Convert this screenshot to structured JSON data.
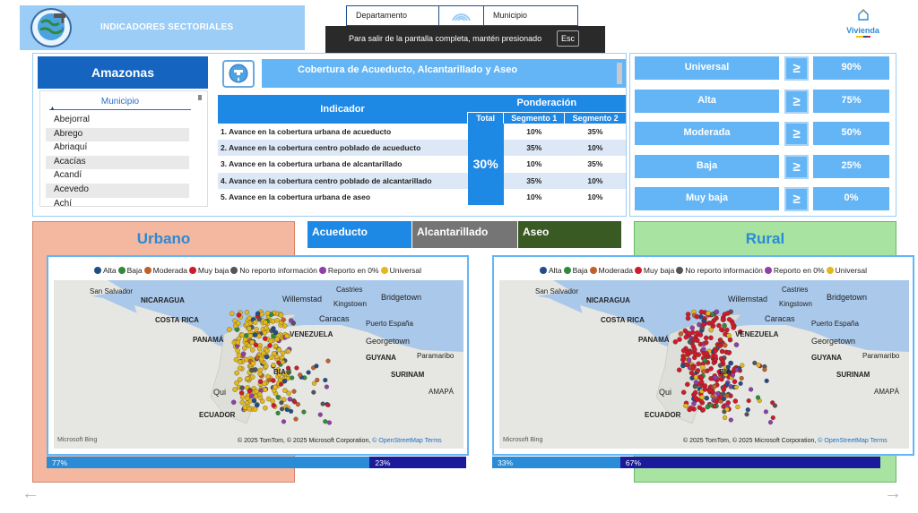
{
  "header": {
    "title": "INDICADORES SECTORIALES",
    "logo_icon": "water-globe-icon"
  },
  "filters": {
    "departamento_label": "Departamento",
    "municipio_label": "Municipio",
    "wifi_icon": "broadcast-icon"
  },
  "toast": {
    "message": "Para salir de la pantalla completa, mantén presionado",
    "key": "Esc"
  },
  "brand": {
    "name": "Vivienda",
    "flag_colors": [
      "#f5c400",
      "#1f4e9a",
      "#d8232a"
    ]
  },
  "department": {
    "name": "Amazonas"
  },
  "municipality_list": {
    "header": "Municipio",
    "items": [
      "Abejorral",
      "Abrego",
      "Abriaquí",
      "Acacías",
      "Acandí",
      "Acevedo",
      "Achí"
    ]
  },
  "coverage": {
    "title": "Cobertura de Acueducto, Alcantarillado y Aseo",
    "icon": "faucet-icon"
  },
  "indicator_table": {
    "header_indicator": "Indicador",
    "header_weighting": "Ponderación",
    "header_total": "Total",
    "header_seg1": "Segmento 1",
    "header_seg2": "Segmento 2",
    "total_value": "30%",
    "rows": [
      {
        "label": "1. Avance en la cobertura urbana de acueducto",
        "seg1": "10%",
        "seg2": "35%"
      },
      {
        "label": "2. Avance en la cobertura centro poblado de acueducto",
        "seg1": "35%",
        "seg2": "10%"
      },
      {
        "label": "3. Avance en la cobertura urbana de alcantarillado",
        "seg1": "10%",
        "seg2": "35%"
      },
      {
        "label": "4. Avance en la cobertura centro poblado de alcantarillado",
        "seg1": "35%",
        "seg2": "10%"
      },
      {
        "label": "5. Avance en la cobertura urbana de aseo",
        "seg1": "10%",
        "seg2": "10%"
      }
    ]
  },
  "levels": [
    {
      "label": "Universal",
      "symbol": "≥",
      "pct": "90%"
    },
    {
      "label": "Alta",
      "symbol": "≥",
      "pct": "75%"
    },
    {
      "label": "Moderada",
      "symbol": "≥",
      "pct": "50%"
    },
    {
      "label": "Baja",
      "symbol": "≥",
      "pct": "25%"
    },
    {
      "label": "Muy baja",
      "symbol": "≥",
      "pct": "0%"
    }
  ],
  "services": {
    "acueducto": "Acueducto",
    "alcantarillado": "Alcantarillado",
    "aseo": "Aseo"
  },
  "legend": [
    {
      "label": "Alta",
      "color": "#1f4e89"
    },
    {
      "label": "Baja",
      "color": "#2e8b3a"
    },
    {
      "label": "Moderada",
      "color": "#c0602a"
    },
    {
      "label": "Muy baja",
      "color": "#d01a2a"
    },
    {
      "label": "No reporto información",
      "color": "#555555"
    },
    {
      "label": "Reporto en 0%",
      "color": "#8e3fa8"
    },
    {
      "label": "Universal",
      "color": "#e3b81c"
    }
  ],
  "map": {
    "places": {
      "san_salvador": "San Salvador",
      "nicaragua": "NICARAGUA",
      "costa_rica": "COSTA RICA",
      "panama": "PANAMÁ",
      "willemstad": "Willemstad",
      "kingstown": "Kingstown",
      "castries": "Castries",
      "bridgetown": "Bridgetown",
      "caracas": "Caracas",
      "puerto_espana": "Puerto España",
      "venezuela": "VENEZUELA",
      "georgetown": "Georgetown",
      "guyana": "GUYANA",
      "paramaribo": "Paramaribo",
      "surinam": "SURINAM",
      "bia": "BIA",
      "qui": "Qui",
      "ecuador": "ECUADOR",
      "amapa": "AMAPÁ"
    },
    "bing": "Microsoft Bing",
    "credits_text": "© 2025 TomTom, © 2025 Microsoft Corporation,",
    "credits_osm": "© OpenStreetMap",
    "credits_terms": "Terms"
  },
  "urbano": {
    "title": "Urbano",
    "bar_a": "77%",
    "bar_b": "23%",
    "bar_a_fraction": 0.77,
    "dominant_color": "#e3b81c"
  },
  "rural": {
    "title": "Rural",
    "bar_a": "33%",
    "bar_b": "67%",
    "bar_a_fraction": 0.33,
    "dominant_color": "#d01a2a"
  },
  "nav": {
    "prev_icon": "arrow-left-icon",
    "next_icon": "arrow-right-icon"
  }
}
